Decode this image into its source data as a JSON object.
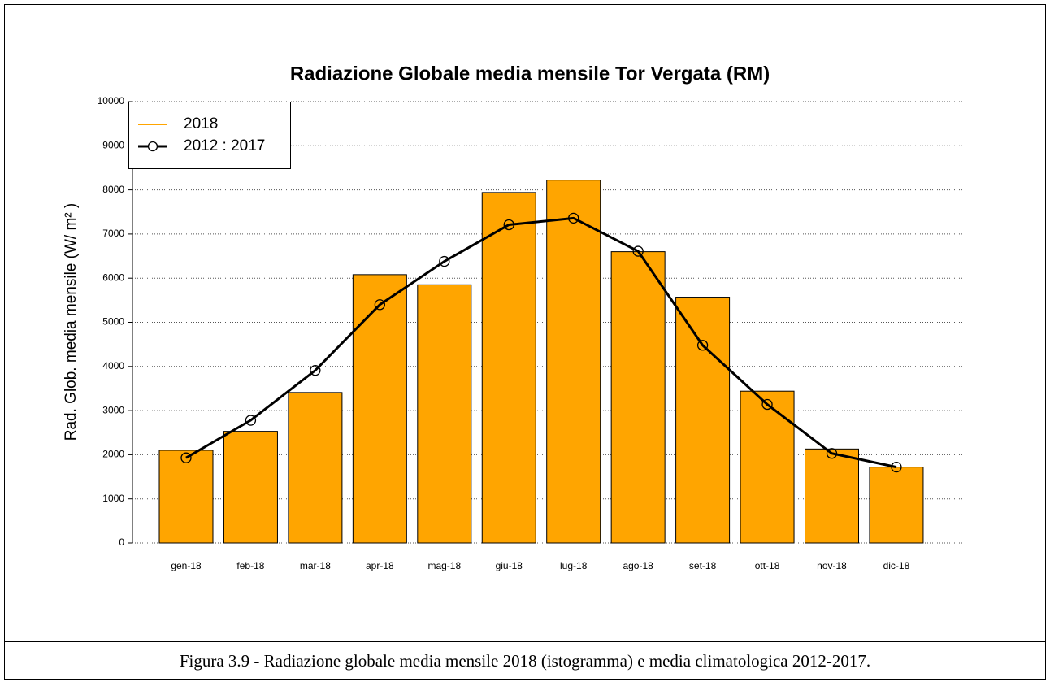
{
  "chart_data": {
    "type": "bar_line",
    "title": "Radiazione Globale media mensile Tor Vergata (RM)",
    "ylabel": "Rad. Glob. media mensile (W/ m² )",
    "categories": [
      "gen-18",
      "feb-18",
      "mar-18",
      "apr-18",
      "mag-18",
      "giu-18",
      "lug-18",
      "ago-18",
      "set-18",
      "ott-18",
      "nov-18",
      "dic-18"
    ],
    "series": [
      {
        "name": "2018",
        "type": "bar",
        "color": "#ffa500",
        "values": [
          2100,
          2530,
          3410,
          6080,
          5850,
          7940,
          8220,
          6600,
          5570,
          3440,
          2130,
          1720
        ]
      },
      {
        "name": "2012 : 2017",
        "type": "line",
        "color": "#000000",
        "values": [
          1930,
          2780,
          3910,
          5400,
          6380,
          7210,
          7360,
          6610,
          4480,
          3140,
          2030,
          1720
        ]
      }
    ],
    "ylim": [
      0,
      10000
    ],
    "yticks": [
      0,
      1000,
      2000,
      3000,
      4000,
      5000,
      6000,
      7000,
      8000,
      9000,
      10000
    ],
    "grid": true,
    "legend": "top-left"
  },
  "caption": "Figura 3.9 - Radiazione globale media mensile 2018 (istogramma) e media climatologica 2012-2017."
}
